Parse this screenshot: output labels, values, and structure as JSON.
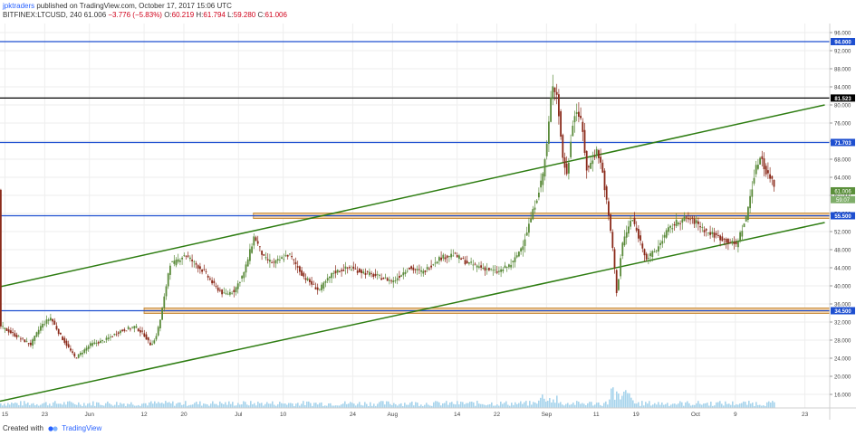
{
  "header": {
    "author": "jpktraders",
    "published": "published on TradingView.com, October 17, 2017 15:06 UTC",
    "symbol": "BITFINEX:LTCUSD, 240",
    "last": "61.006",
    "change": "−3.776 (−5.83%)",
    "o_label": "O:",
    "o": "60.219",
    "h_label": "H:",
    "h": "61.794",
    "l_label": "L:",
    "l": "59.280",
    "c_label": "C:",
    "c": "61.006"
  },
  "footer": {
    "created_with": "Created with",
    "brand": "TradingView"
  },
  "colors": {
    "hline_blue": "#1e4fd0",
    "hline_black": "#000000",
    "channel": "#2e7d12",
    "zone_fill": "#f3cfa2",
    "zone_edge": "#c98f3f",
    "candle_up": "#5a8a3a",
    "candle_down": "#8a2a1a",
    "volume": "#a8d4ec",
    "grid": "#eeeeee"
  },
  "chart_data": {
    "type": "candlestick",
    "x_ticks": [
      "15",
      "23",
      "Jun",
      "12",
      "20",
      "Jul",
      "10",
      "24",
      "Aug",
      "14",
      "22",
      "Sep",
      "11",
      "19",
      "Oct",
      "9",
      "23"
    ],
    "y_ticks": [
      16,
      20,
      24,
      28,
      32,
      36,
      40,
      44,
      48,
      52,
      56,
      60,
      64,
      68,
      72,
      76,
      80,
      84,
      88,
      92,
      96
    ],
    "ylim": [
      13,
      98
    ],
    "price_path": [
      {
        "x": "May 14",
        "y": 31
      },
      {
        "x": "May 17",
        "y": 29
      },
      {
        "x": "May 20",
        "y": 27
      },
      {
        "x": "May 22",
        "y": 31
      },
      {
        "x": "May 24",
        "y": 33
      },
      {
        "x": "May 26",
        "y": 29
      },
      {
        "x": "May 29",
        "y": 24
      },
      {
        "x": "Jun 1",
        "y": 27
      },
      {
        "x": "Jun 4",
        "y": 28
      },
      {
        "x": "Jun 7",
        "y": 30
      },
      {
        "x": "Jun 10",
        "y": 31
      },
      {
        "x": "Jun 12",
        "y": 29
      },
      {
        "x": "Jun 13",
        "y": 27
      },
      {
        "x": "Jun 14",
        "y": 28
      },
      {
        "x": "Jun 15",
        "y": 32
      },
      {
        "x": "Jun 16",
        "y": 38
      },
      {
        "x": "Jun 17",
        "y": 45
      },
      {
        "x": "Jun 18",
        "y": 45
      },
      {
        "x": "Jun 20",
        "y": 47
      },
      {
        "x": "Jun 22",
        "y": 45
      },
      {
        "x": "Jun 24",
        "y": 43
      },
      {
        "x": "Jun 26",
        "y": 40
      },
      {
        "x": "Jun 28",
        "y": 38
      },
      {
        "x": "Jun 30",
        "y": 39
      },
      {
        "x": "Jul 2",
        "y": 43
      },
      {
        "x": "Jul 4",
        "y": 51
      },
      {
        "x": "Jul 6",
        "y": 46
      },
      {
        "x": "Jul 8",
        "y": 45
      },
      {
        "x": "Jul 11",
        "y": 47
      },
      {
        "x": "Jul 14",
        "y": 42
      },
      {
        "x": "Jul 17",
        "y": 39
      },
      {
        "x": "Jul 20",
        "y": 43
      },
      {
        "x": "Jul 23",
        "y": 44
      },
      {
        "x": "Jul 26",
        "y": 43
      },
      {
        "x": "Jul 29",
        "y": 42
      },
      {
        "x": "Aug 1",
        "y": 41
      },
      {
        "x": "Aug 4",
        "y": 44
      },
      {
        "x": "Aug 7",
        "y": 43
      },
      {
        "x": "Aug 10",
        "y": 46
      },
      {
        "x": "Aug 13",
        "y": 47
      },
      {
        "x": "Aug 16",
        "y": 45
      },
      {
        "x": "Aug 19",
        "y": 44
      },
      {
        "x": "Aug 22",
        "y": 43
      },
      {
        "x": "Aug 25",
        "y": 45
      },
      {
        "x": "Aug 27",
        "y": 49
      },
      {
        "x": "Aug 29",
        "y": 56
      },
      {
        "x": "Aug 31",
        "y": 64
      },
      {
        "x": "Sep 1",
        "y": 72
      },
      {
        "x": "Sep 2",
        "y": 85
      },
      {
        "x": "Sep 3",
        "y": 82
      },
      {
        "x": "Sep 4",
        "y": 69
      },
      {
        "x": "Sep 5",
        "y": 64
      },
      {
        "x": "Sep 6",
        "y": 76
      },
      {
        "x": "Sep 7",
        "y": 79
      },
      {
        "x": "Sep 8",
        "y": 75
      },
      {
        "x": "Sep 9",
        "y": 65
      },
      {
        "x": "Sep 10",
        "y": 68
      },
      {
        "x": "Sep 11",
        "y": 70
      },
      {
        "x": "Sep 12",
        "y": 66
      },
      {
        "x": "Sep 13",
        "y": 58
      },
      {
        "x": "Sep 14",
        "y": 50
      },
      {
        "x": "Sep 15",
        "y": 38
      },
      {
        "x": "Sep 16",
        "y": 49
      },
      {
        "x": "Sep 17",
        "y": 52
      },
      {
        "x": "Sep 18",
        "y": 55
      },
      {
        "x": "Sep 19",
        "y": 52
      },
      {
        "x": "Sep 21",
        "y": 46
      },
      {
        "x": "Sep 23",
        "y": 48
      },
      {
        "x": "Sep 25",
        "y": 52
      },
      {
        "x": "Sep 27",
        "y": 54
      },
      {
        "x": "Sep 29",
        "y": 55
      },
      {
        "x": "Oct 1",
        "y": 54
      },
      {
        "x": "Oct 3",
        "y": 52
      },
      {
        "x": "Oct 5",
        "y": 51
      },
      {
        "x": "Oct 7",
        "y": 50
      },
      {
        "x": "Oct 9",
        "y": 49
      },
      {
        "x": "Oct 11",
        "y": 55
      },
      {
        "x": "Oct 12",
        "y": 61
      },
      {
        "x": "Oct 13",
        "y": 66
      },
      {
        "x": "Oct 14",
        "y": 69
      },
      {
        "x": "Oct 15",
        "y": 65
      },
      {
        "x": "Oct 16",
        "y": 64
      },
      {
        "x": "Oct 17",
        "y": 61
      }
    ],
    "horizontal_levels": [
      {
        "value": 94.0,
        "label": "94.000",
        "style": "blue"
      },
      {
        "value": 81.523,
        "label": "81.523",
        "style": "black"
      },
      {
        "value": 71.703,
        "label": "71.703",
        "style": "blue"
      },
      {
        "value": 55.5,
        "label": "55.500",
        "style": "blue"
      },
      {
        "value": 34.5,
        "label": "34.500",
        "style": "blue"
      }
    ],
    "price_tags": [
      {
        "value": 61.006,
        "label": "61.006"
      },
      {
        "value": 59.07,
        "label": "59.07"
      }
    ],
    "zones": [
      {
        "start": "Jul 4",
        "ymin": 54.9,
        "ymax": 56.1
      },
      {
        "start": "Jun 12",
        "ymin": 33.9,
        "ymax": 35.1
      }
    ],
    "channel_lines": [
      {
        "start": {
          "x": "May 14",
          "y": 39.8
        },
        "end": {
          "x": "Oct 27",
          "y": 80
        }
      },
      {
        "start": {
          "x": "May 14",
          "y": 14.5
        },
        "end": {
          "x": "Oct 27",
          "y": 54
        }
      }
    ]
  }
}
